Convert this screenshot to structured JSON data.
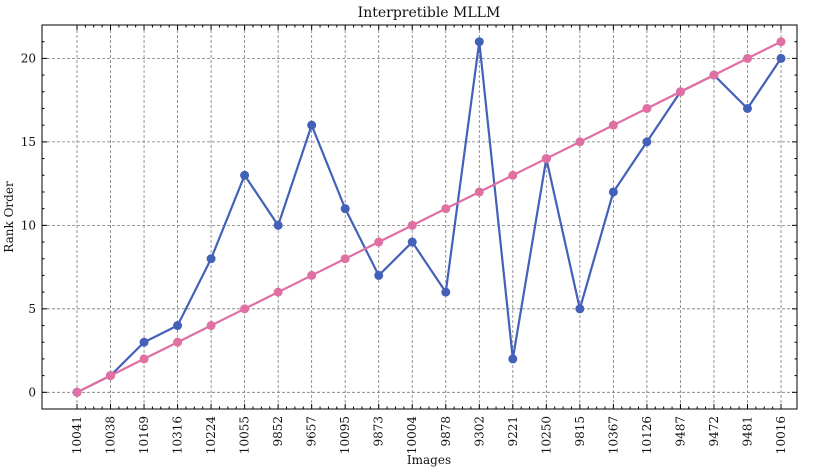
{
  "chart_data": {
    "type": "line",
    "title": "Interpretible MLLM",
    "xlabel": "Images",
    "ylabel": "Rank Order",
    "categories": [
      "10041",
      "10038",
      "10169",
      "10316",
      "10224",
      "10055",
      "9852",
      "9657",
      "10095",
      "9873",
      "10004",
      "9878",
      "9302",
      "9221",
      "10250",
      "9815",
      "10367",
      "10126",
      "9487",
      "9472",
      "9481",
      "10016"
    ],
    "ylim": [
      -1,
      22
    ],
    "yticks": [
      0,
      5,
      10,
      15,
      20
    ],
    "grid": true,
    "series": [
      {
        "color": "#4361b8",
        "values": [
          0,
          1,
          3,
          4,
          8,
          13,
          10,
          16,
          11,
          7,
          9,
          6,
          21,
          2,
          14,
          5,
          12,
          15,
          18,
          19,
          17,
          20
        ]
      },
      {
        "color": "#e06fa2",
        "values": [
          0,
          1,
          2,
          3,
          4,
          5,
          6,
          7,
          8,
          9,
          10,
          11,
          12,
          13,
          14,
          15,
          16,
          17,
          18,
          19,
          20,
          21
        ]
      }
    ]
  }
}
